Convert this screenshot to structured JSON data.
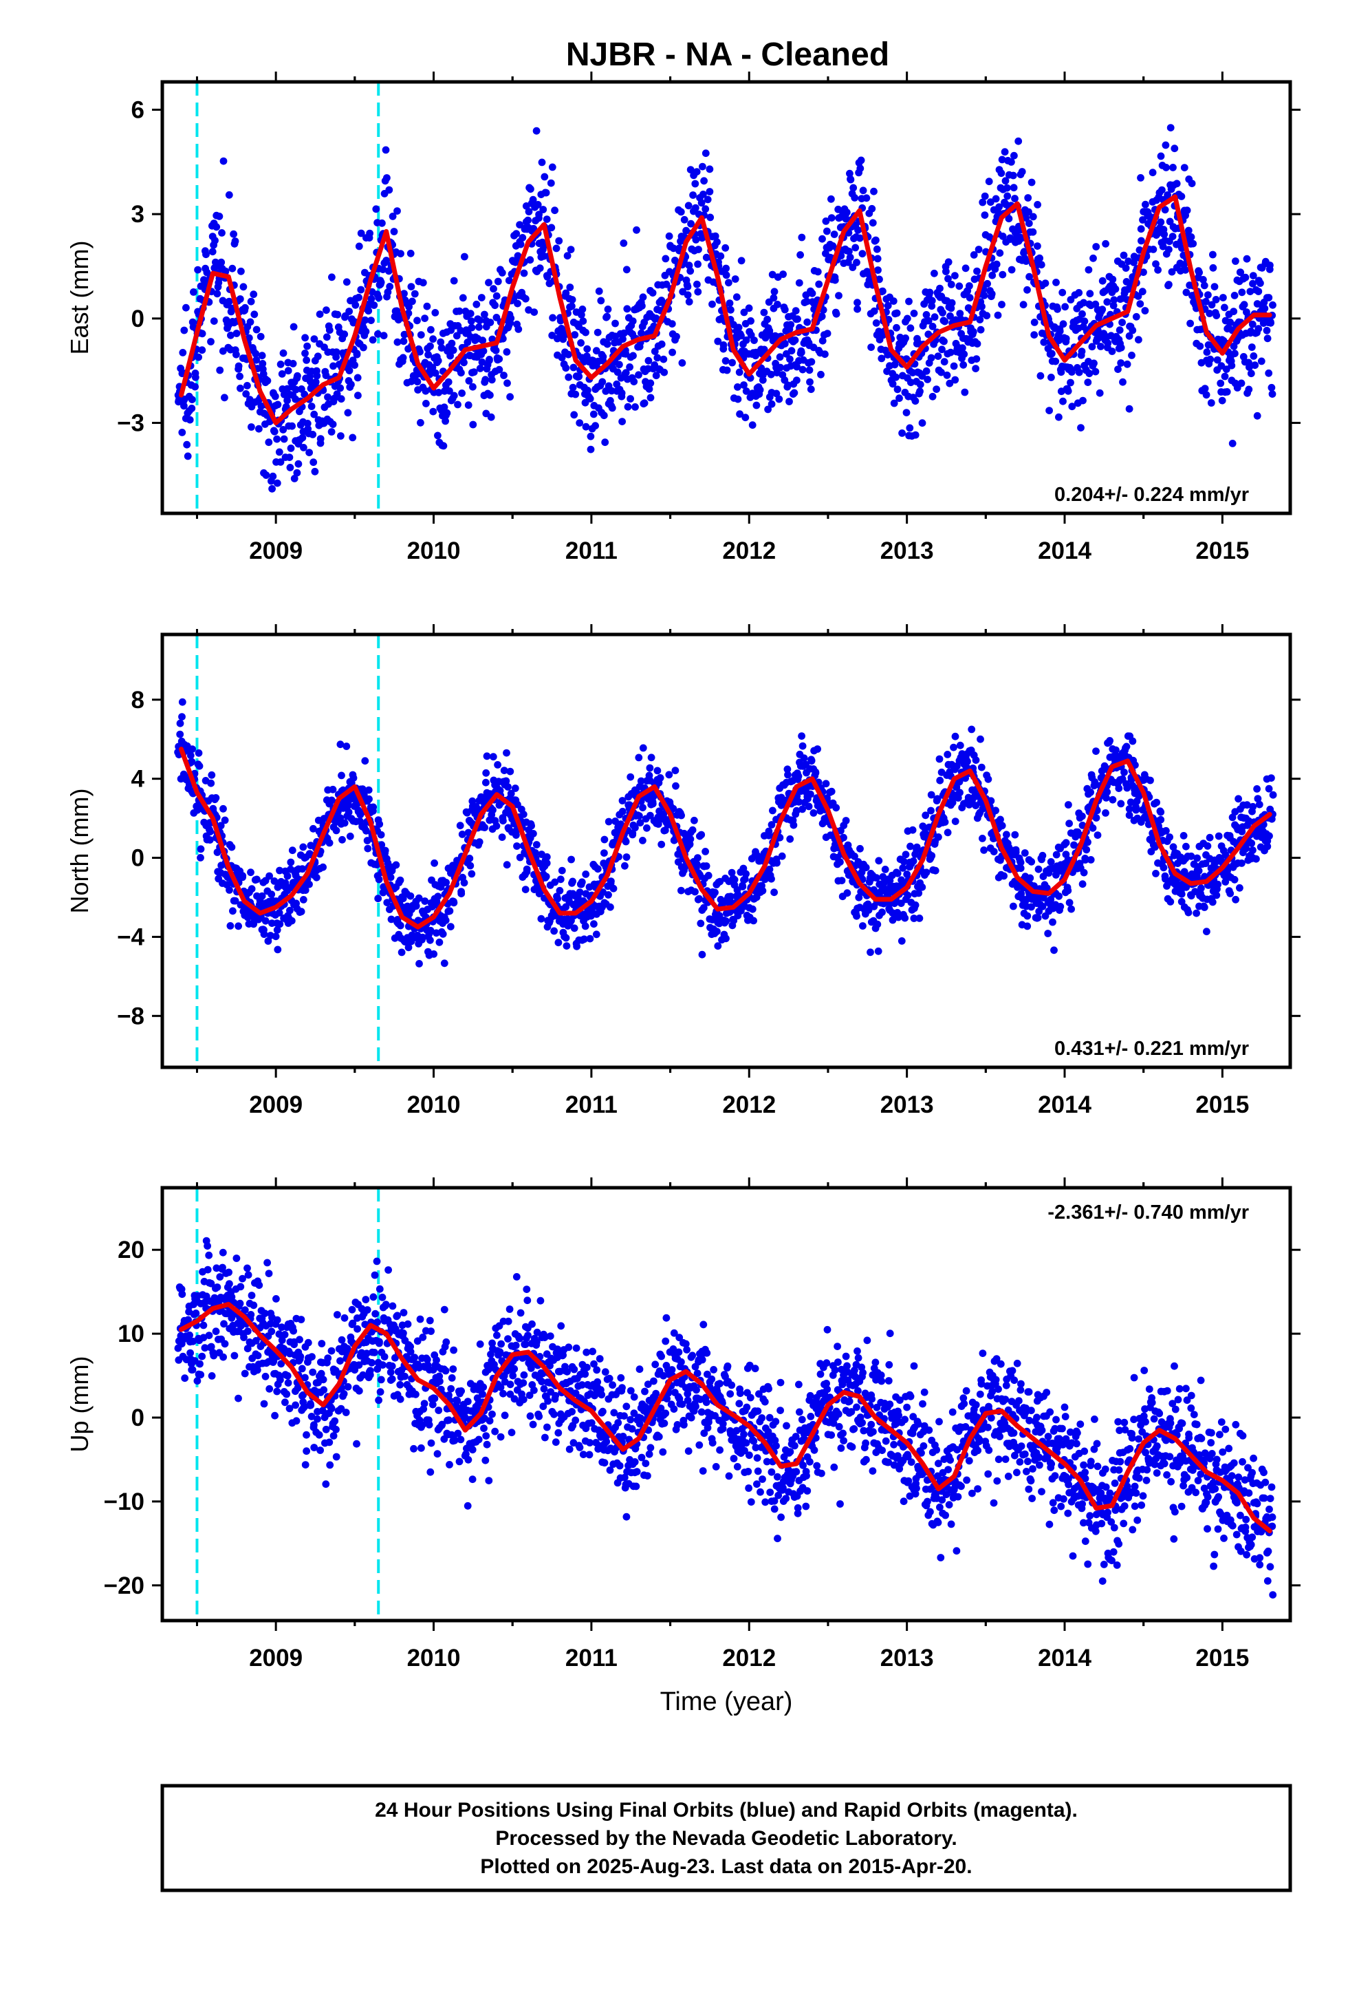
{
  "title": "NJBR  - NA - Cleaned",
  "colors": {
    "dots": "#0000ee",
    "fit": "#ee0000",
    "event_lines": "#00e5ee",
    "frame": "#000000"
  },
  "chart_data": [
    {
      "type": "scatter",
      "ylabel": "East (mm)",
      "xlabel": "",
      "xlim": [
        2008.28,
        2015.43
      ],
      "ylim": [
        -5.6,
        6.8
      ],
      "xticks": [
        2009,
        2010,
        2011,
        2012,
        2013,
        2014,
        2015
      ],
      "xticklabels": [
        "2009",
        "2010",
        "2011",
        "2012",
        "2013",
        "2014",
        "2015"
      ],
      "yticks": [
        -3,
        0,
        3,
        6
      ],
      "yticklabels": [
        "−3",
        "0",
        "3",
        "6"
      ],
      "rate": "0.204+/- 0.224 mm/yr",
      "rate_position": "bottom-right",
      "event_lines": [
        2008.5,
        2009.65
      ],
      "series": [
        {
          "kind": "scatter",
          "x": [
            2008.4,
            2008.5,
            2008.6,
            2008.7,
            2008.8,
            2008.9,
            2009.0,
            2009.1,
            2009.2,
            2009.3,
            2009.4,
            2009.5,
            2009.6,
            2009.7,
            2009.8,
            2009.9,
            2010.0,
            2010.1,
            2010.2,
            2010.3,
            2010.4,
            2010.5,
            2010.6,
            2010.7,
            2010.8,
            2010.9,
            2011.0,
            2011.1,
            2011.2,
            2011.3,
            2011.4,
            2011.5,
            2011.6,
            2011.7,
            2011.8,
            2011.9,
            2012.0,
            2012.1,
            2012.2,
            2012.3,
            2012.4,
            2012.5,
            2012.6,
            2012.7,
            2012.8,
            2012.9,
            2013.0,
            2013.1,
            2013.2,
            2013.3,
            2013.4,
            2013.5,
            2013.6,
            2013.7,
            2013.8,
            2013.9,
            2014.0,
            2014.1,
            2014.2,
            2014.3,
            2014.4,
            2014.5,
            2014.6,
            2014.7,
            2014.8,
            2014.9,
            2015.0,
            2015.1,
            2015.2,
            2015.3
          ],
          "y": [
            -2.2,
            -0.4,
            1.3,
            1.2,
            -0.6,
            -2.1,
            -3.0,
            -2.6,
            -2.3,
            -1.9,
            -1.7,
            -0.5,
            1.1,
            2.5,
            0.3,
            -1.3,
            -2.0,
            -1.5,
            -0.9,
            -0.8,
            -0.7,
            0.9,
            2.2,
            2.7,
            0.6,
            -1.2,
            -1.7,
            -1.3,
            -0.8,
            -0.6,
            -0.5,
            0.6,
            2.2,
            2.9,
            1.2,
            -0.9,
            -1.6,
            -1.1,
            -0.6,
            -0.4,
            -0.3,
            1.1,
            2.5,
            3.1,
            1.0,
            -0.9,
            -1.4,
            -0.8,
            -0.4,
            -0.2,
            -0.1,
            1.5,
            2.9,
            3.3,
            1.5,
            -0.5,
            -1.2,
            -0.7,
            -0.2,
            0.0,
            0.2,
            1.9,
            3.2,
            3.5,
            1.4,
            -0.4,
            -1.0,
            -0.3,
            0.1,
            0.1
          ]
        },
        {
          "kind": "line",
          "x": [
            2008.4,
            2008.5,
            2008.6,
            2008.7,
            2008.8,
            2008.9,
            2009.0,
            2009.1,
            2009.2,
            2009.3,
            2009.4,
            2009.5,
            2009.6,
            2009.7,
            2009.8,
            2009.9,
            2010.0,
            2010.1,
            2010.2,
            2010.3,
            2010.4,
            2010.5,
            2010.6,
            2010.7,
            2010.8,
            2010.9,
            2011.0,
            2011.1,
            2011.2,
            2011.3,
            2011.4,
            2011.5,
            2011.6,
            2011.7,
            2011.8,
            2011.9,
            2012.0,
            2012.1,
            2012.2,
            2012.3,
            2012.4,
            2012.5,
            2012.6,
            2012.7,
            2012.8,
            2012.9,
            2013.0,
            2013.1,
            2013.2,
            2013.3,
            2013.4,
            2013.5,
            2013.6,
            2013.7,
            2013.8,
            2013.9,
            2014.0,
            2014.1,
            2014.2,
            2014.3,
            2014.4,
            2014.5,
            2014.6,
            2014.7,
            2014.8,
            2014.9,
            2015.0,
            2015.1,
            2015.2,
            2015.3
          ],
          "y": [
            -2.2,
            -0.4,
            1.3,
            1.2,
            -0.6,
            -2.1,
            -3.0,
            -2.6,
            -2.3,
            -1.9,
            -1.7,
            -0.5,
            1.1,
            2.5,
            0.3,
            -1.3,
            -2.0,
            -1.5,
            -0.9,
            -0.8,
            -0.7,
            0.9,
            2.2,
            2.7,
            0.6,
            -1.2,
            -1.7,
            -1.3,
            -0.8,
            -0.6,
            -0.5,
            0.6,
            2.2,
            2.9,
            1.2,
            -0.9,
            -1.6,
            -1.1,
            -0.6,
            -0.4,
            -0.3,
            1.1,
            2.5,
            3.1,
            1.0,
            -0.9,
            -1.4,
            -0.8,
            -0.4,
            -0.2,
            -0.1,
            1.5,
            2.9,
            3.3,
            1.5,
            -0.5,
            -1.2,
            -0.7,
            -0.2,
            0.0,
            0.2,
            1.9,
            3.2,
            3.5,
            1.4,
            -0.4,
            -1.0,
            -0.3,
            0.1,
            0.1
          ]
        }
      ]
    },
    {
      "type": "scatter",
      "ylabel": "North (mm)",
      "xlabel": "",
      "xlim": [
        2008.28,
        2015.43
      ],
      "ylim": [
        -10.6,
        11.3
      ],
      "xticks": [
        2009,
        2010,
        2011,
        2012,
        2013,
        2014,
        2015
      ],
      "xticklabels": [
        "2009",
        "2010",
        "2011",
        "2012",
        "2013",
        "2014",
        "2015"
      ],
      "yticks": [
        -8,
        -4,
        0,
        4,
        8
      ],
      "yticklabels": [
        "−8",
        "−4",
        "0",
        "4",
        "8"
      ],
      "rate": "0.431+/- 0.221 mm/yr",
      "rate_position": "bottom-right",
      "event_lines": [
        2008.5,
        2009.65
      ],
      "series": [
        {
          "kind": "scatter",
          "x": [
            2008.4,
            2008.5,
            2008.6,
            2008.7,
            2008.8,
            2008.9,
            2009.0,
            2009.1,
            2009.2,
            2009.3,
            2009.4,
            2009.5,
            2009.6,
            2009.7,
            2009.8,
            2009.9,
            2010.0,
            2010.1,
            2010.2,
            2010.3,
            2010.4,
            2010.5,
            2010.6,
            2010.7,
            2010.8,
            2010.9,
            2011.0,
            2011.1,
            2011.2,
            2011.3,
            2011.4,
            2011.5,
            2011.6,
            2011.7,
            2011.8,
            2011.9,
            2012.0,
            2012.1,
            2012.2,
            2012.3,
            2012.4,
            2012.5,
            2012.6,
            2012.7,
            2012.8,
            2012.9,
            2013.0,
            2013.1,
            2013.2,
            2013.3,
            2013.4,
            2013.5,
            2013.6,
            2013.7,
            2013.8,
            2013.9,
            2014.0,
            2014.1,
            2014.2,
            2014.3,
            2014.4,
            2014.5,
            2014.6,
            2014.7,
            2014.8,
            2014.9,
            2015.0,
            2015.1,
            2015.2,
            2015.3
          ],
          "y": [
            5.5,
            3.3,
            2.0,
            -0.5,
            -2.2,
            -2.8,
            -2.5,
            -1.9,
            -0.8,
            1.2,
            3.0,
            3.6,
            1.8,
            -1.2,
            -3.0,
            -3.5,
            -3.0,
            -1.8,
            0.2,
            2.2,
            3.2,
            2.6,
            0.4,
            -1.6,
            -2.8,
            -2.8,
            -2.2,
            -0.9,
            1.3,
            3.1,
            3.6,
            2.2,
            0.0,
            -1.6,
            -2.6,
            -2.5,
            -1.8,
            -0.4,
            1.9,
            3.6,
            4.0,
            2.4,
            0.2,
            -1.3,
            -2.1,
            -2.1,
            -1.5,
            -0.1,
            2.2,
            4.0,
            4.4,
            2.9,
            0.5,
            -1.0,
            -1.7,
            -1.8,
            -1.1,
            0.6,
            2.9,
            4.6,
            4.9,
            3.3,
            0.7,
            -0.8,
            -1.3,
            -1.2,
            -0.5,
            0.5,
            1.6,
            2.2
          ]
        },
        {
          "kind": "line",
          "x": [
            2008.4,
            2008.5,
            2008.6,
            2008.7,
            2008.8,
            2008.9,
            2009.0,
            2009.1,
            2009.2,
            2009.3,
            2009.4,
            2009.5,
            2009.6,
            2009.7,
            2009.8,
            2009.9,
            2010.0,
            2010.1,
            2010.2,
            2010.3,
            2010.4,
            2010.5,
            2010.6,
            2010.7,
            2010.8,
            2010.9,
            2011.0,
            2011.1,
            2011.2,
            2011.3,
            2011.4,
            2011.5,
            2011.6,
            2011.7,
            2011.8,
            2011.9,
            2012.0,
            2012.1,
            2012.2,
            2012.3,
            2012.4,
            2012.5,
            2012.6,
            2012.7,
            2012.8,
            2012.9,
            2013.0,
            2013.1,
            2013.2,
            2013.3,
            2013.4,
            2013.5,
            2013.6,
            2013.7,
            2013.8,
            2013.9,
            2014.0,
            2014.1,
            2014.2,
            2014.3,
            2014.4,
            2014.5,
            2014.6,
            2014.7,
            2014.8,
            2014.9,
            2015.0,
            2015.1,
            2015.2,
            2015.3
          ],
          "y": [
            5.5,
            3.3,
            2.0,
            -0.5,
            -2.2,
            -2.8,
            -2.5,
            -1.9,
            -0.8,
            1.2,
            3.0,
            3.6,
            1.8,
            -1.2,
            -3.0,
            -3.5,
            -3.0,
            -1.8,
            0.2,
            2.2,
            3.2,
            2.6,
            0.4,
            -1.6,
            -2.8,
            -2.8,
            -2.2,
            -0.9,
            1.3,
            3.1,
            3.6,
            2.2,
            0.0,
            -1.6,
            -2.6,
            -2.5,
            -1.8,
            -0.4,
            1.9,
            3.6,
            4.0,
            2.4,
            0.2,
            -1.3,
            -2.1,
            -2.1,
            -1.5,
            -0.1,
            2.2,
            4.0,
            4.4,
            2.9,
            0.5,
            -1.0,
            -1.7,
            -1.8,
            -1.1,
            0.6,
            2.9,
            4.6,
            4.9,
            3.3,
            0.7,
            -0.8,
            -1.3,
            -1.2,
            -0.5,
            0.5,
            1.6,
            2.2
          ]
        }
      ]
    },
    {
      "type": "scatter",
      "ylabel": "Up (mm)",
      "xlabel": "Time (year)",
      "xlim": [
        2008.28,
        2015.43
      ],
      "ylim": [
        -24.2,
        27.4
      ],
      "xticks": [
        2009,
        2010,
        2011,
        2012,
        2013,
        2014,
        2015
      ],
      "xticklabels": [
        "2009",
        "2010",
        "2011",
        "2012",
        "2013",
        "2014",
        "2015"
      ],
      "yticks": [
        -20,
        -10,
        0,
        10,
        20
      ],
      "yticklabels": [
        "−20",
        "−10",
        "0",
        "10",
        "20"
      ],
      "rate": "-2.361+/- 0.740 mm/yr",
      "rate_position": "top-right",
      "event_lines": [
        2008.5,
        2009.65
      ],
      "series": [
        {
          "kind": "scatter",
          "x": [
            2008.4,
            2008.5,
            2008.6,
            2008.7,
            2008.8,
            2008.9,
            2009.0,
            2009.1,
            2009.2,
            2009.3,
            2009.4,
            2009.5,
            2009.6,
            2009.7,
            2009.8,
            2009.9,
            2010.0,
            2010.1,
            2010.2,
            2010.3,
            2010.4,
            2010.5,
            2010.6,
            2010.7,
            2010.8,
            2010.9,
            2011.0,
            2011.1,
            2011.2,
            2011.3,
            2011.4,
            2011.5,
            2011.6,
            2011.7,
            2011.8,
            2011.9,
            2012.0,
            2012.1,
            2012.2,
            2012.3,
            2012.4,
            2012.5,
            2012.6,
            2012.7,
            2012.8,
            2012.9,
            2013.0,
            2013.1,
            2013.2,
            2013.3,
            2013.4,
            2013.5,
            2013.6,
            2013.7,
            2013.8,
            2013.9,
            2014.0,
            2014.1,
            2014.2,
            2014.3,
            2014.4,
            2014.5,
            2014.6,
            2014.7,
            2014.8,
            2014.9,
            2015.0,
            2015.1,
            2015.2,
            2015.3
          ],
          "y": [
            10.5,
            11.5,
            13.0,
            13.5,
            12.0,
            9.8,
            8.0,
            6.0,
            3.0,
            1.5,
            4.0,
            8.5,
            11.0,
            10.0,
            7.0,
            4.5,
            3.5,
            1.5,
            -1.5,
            0.5,
            5.0,
            7.5,
            7.8,
            6.0,
            3.5,
            2.0,
            0.8,
            -1.5,
            -3.8,
            -2.5,
            1.0,
            4.5,
            5.5,
            4.0,
            1.5,
            0.3,
            -1.0,
            -3.0,
            -5.8,
            -5.5,
            -2.0,
            1.5,
            3.0,
            2.5,
            0.0,
            -1.5,
            -3.0,
            -5.5,
            -8.5,
            -7.0,
            -2.5,
            0.5,
            0.8,
            -1.0,
            -2.5,
            -4.0,
            -5.5,
            -7.5,
            -10.8,
            -10.5,
            -6.5,
            -3.0,
            -1.5,
            -2.5,
            -4.5,
            -6.5,
            -7.5,
            -9.0,
            -12.0,
            -13.5
          ]
        },
        {
          "kind": "line",
          "x": [
            2008.4,
            2008.5,
            2008.6,
            2008.7,
            2008.8,
            2008.9,
            2009.0,
            2009.1,
            2009.2,
            2009.3,
            2009.4,
            2009.5,
            2009.6,
            2009.7,
            2009.8,
            2009.9,
            2010.0,
            2010.1,
            2010.2,
            2010.3,
            2010.4,
            2010.5,
            2010.6,
            2010.7,
            2010.8,
            2010.9,
            2011.0,
            2011.1,
            2011.2,
            2011.3,
            2011.4,
            2011.5,
            2011.6,
            2011.7,
            2011.8,
            2011.9,
            2012.0,
            2012.1,
            2012.2,
            2012.3,
            2012.4,
            2012.5,
            2012.6,
            2012.7,
            2012.8,
            2012.9,
            2013.0,
            2013.1,
            2013.2,
            2013.3,
            2013.4,
            2013.5,
            2013.6,
            2013.7,
            2013.8,
            2013.9,
            2014.0,
            2014.1,
            2014.2,
            2014.3,
            2014.4,
            2014.5,
            2014.6,
            2014.7,
            2014.8,
            2014.9,
            2015.0,
            2015.1,
            2015.2,
            2015.3
          ],
          "y": [
            10.5,
            11.5,
            13.0,
            13.5,
            12.0,
            9.8,
            8.0,
            6.0,
            3.0,
            1.5,
            4.0,
            8.5,
            11.0,
            10.0,
            7.0,
            4.5,
            3.5,
            1.5,
            -1.5,
            0.5,
            5.0,
            7.5,
            7.8,
            6.0,
            3.5,
            2.0,
            0.8,
            -1.5,
            -3.8,
            -2.5,
            1.0,
            4.5,
            5.5,
            4.0,
            1.5,
            0.3,
            -1.0,
            -3.0,
            -5.8,
            -5.5,
            -2.0,
            1.5,
            3.0,
            2.5,
            0.0,
            -1.5,
            -3.0,
            -5.5,
            -8.5,
            -7.0,
            -2.5,
            0.5,
            0.8,
            -1.0,
            -2.5,
            -4.0,
            -5.5,
            -7.5,
            -10.8,
            -10.5,
            -6.5,
            -3.0,
            -1.5,
            -2.5,
            -4.5,
            -6.5,
            -7.5,
            -9.0,
            -12.0,
            -13.5
          ]
        }
      ]
    }
  ],
  "footer": {
    "line1": "24 Hour Positions Using Final Orbits (blue) and Rapid Orbits (magenta).",
    "line2": "Processed by the Nevada Geodetic Laboratory.",
    "line3": "Plotted on 2025-Aug-23. Last data on 2015-Apr-20."
  }
}
